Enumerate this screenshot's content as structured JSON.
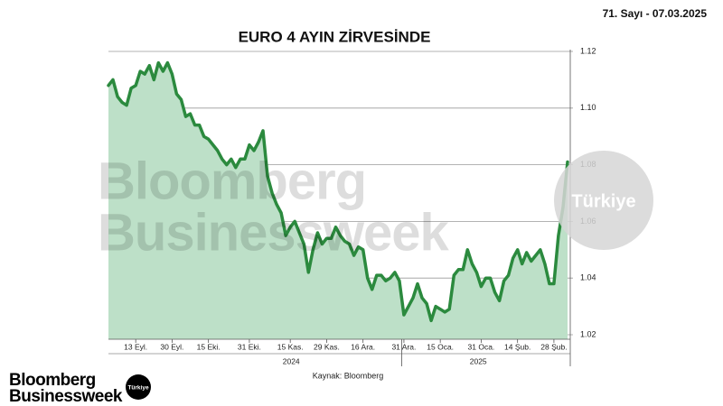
{
  "header": {
    "issue": "71. Sayı - 07.03.2025"
  },
  "chart_data": {
    "type": "area",
    "title": "EURO 4 AYIN ZİRVESİNDE",
    "source": "Kaynak: Bloomberg",
    "year_labels": [
      "2024",
      "2025"
    ],
    "categories": [
      null,
      null,
      null,
      null,
      null,
      null,
      "13 Eyl.",
      null,
      null,
      null,
      null,
      null,
      null,
      null,
      "30 Eyl.",
      null,
      null,
      null,
      null,
      null,
      null,
      null,
      "15 Eki.",
      null,
      null,
      null,
      null,
      null,
      null,
      null,
      null,
      "31 Eki.",
      null,
      null,
      null,
      null,
      null,
      null,
      null,
      null,
      "15 Kas.",
      null,
      null,
      null,
      null,
      null,
      null,
      null,
      "29 Kas.",
      null,
      null,
      null,
      null,
      null,
      null,
      null,
      "16 Ara.",
      null,
      null,
      null,
      null,
      null,
      null,
      null,
      null,
      "31 Ara.",
      null,
      null,
      null,
      null,
      null,
      null,
      null,
      "15 Oca.",
      null,
      null,
      null,
      null,
      null,
      null,
      null,
      null,
      "31 Oca.",
      null,
      null,
      null,
      null,
      null,
      null,
      null,
      "14 Şub.",
      null,
      null,
      null,
      null,
      null,
      null,
      null,
      "28 Şub.",
      null,
      null,
      null
    ],
    "values": [
      1.108,
      1.11,
      1.104,
      1.102,
      1.101,
      1.107,
      1.108,
      1.113,
      1.112,
      1.115,
      1.11,
      1.116,
      1.113,
      1.116,
      1.112,
      1.105,
      1.103,
      1.097,
      1.098,
      1.094,
      1.094,
      1.09,
      1.089,
      1.087,
      1.085,
      1.082,
      1.08,
      1.082,
      1.079,
      1.082,
      1.082,
      1.087,
      1.085,
      1.088,
      1.092,
      1.076,
      1.07,
      1.066,
      1.063,
      1.055,
      1.058,
      1.06,
      1.056,
      1.052,
      1.042,
      1.05,
      1.056,
      1.052,
      1.054,
      1.054,
      1.058,
      1.055,
      1.053,
      1.052,
      1.048,
      1.051,
      1.05,
      1.04,
      1.036,
      1.041,
      1.041,
      1.039,
      1.04,
      1.042,
      1.039,
      1.027,
      1.03,
      1.033,
      1.038,
      1.033,
      1.031,
      1.025,
      1.03,
      1.029,
      1.028,
      1.029,
      1.041,
      1.043,
      1.043,
      1.05,
      1.045,
      1.042,
      1.037,
      1.04,
      1.04,
      1.035,
      1.032,
      1.039,
      1.041,
      1.047,
      1.05,
      1.045,
      1.049,
      1.046,
      1.048,
      1.05,
      1.045,
      1.038,
      1.038,
      1.055,
      1.065,
      1.081
    ],
    "color": "#2b8a3e",
    "fill_color": "#bde0c8",
    "ylim": [
      1.02,
      1.12
    ],
    "yticks": [
      1.02,
      1.04,
      1.06,
      1.08,
      {
        "value": 1.1,
        "label": "1.10"
      },
      1.12
    ],
    "grid": true
  },
  "brand": {
    "line1": "Bloomberg",
    "line2": "Businessweek",
    "badge": "Türkiye"
  }
}
